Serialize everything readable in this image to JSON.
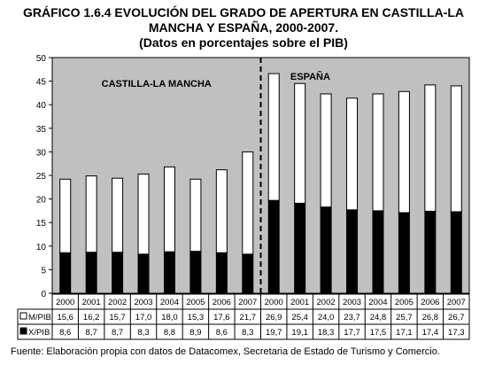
{
  "title_line1": "GRÁFICO 1.6.4 EVOLUCIÓN DEL GRADO DE APERTURA EN CASTILLA-LA",
  "title_line2": "MANCHA Y ESPAÑA, 2000-2007.",
  "title_line3": "(Datos en porcentajes sobre el PIB)",
  "source": "Fuente: Elaboración propia con datos de Datacomex, Secretaria de Estado de Turismo y Comercio.",
  "chart_data": {
    "type": "bar",
    "stacked": true,
    "ylim": [
      0,
      50
    ],
    "yticks": [
      0,
      5,
      10,
      15,
      20,
      25,
      30,
      35,
      40,
      45,
      50
    ],
    "grid": false,
    "regions": [
      "CASTILLA-LA MANCHA",
      "ESPAÑA"
    ],
    "categories": [
      "2000",
      "2001",
      "2002",
      "2003",
      "2004",
      "2005",
      "2006",
      "2007",
      "2000",
      "2001",
      "2002",
      "2003",
      "2004",
      "2005",
      "2006",
      "2007"
    ],
    "series": [
      {
        "name": "X/PIB",
        "color": "#000000",
        "values": [
          8.6,
          8.7,
          8.7,
          8.3,
          8.8,
          8.9,
          8.6,
          8.3,
          19.7,
          19.1,
          18.3,
          17.7,
          17.5,
          17.1,
          17.4,
          17.3
        ]
      },
      {
        "name": "M/PIB",
        "color": "#ffffff",
        "values": [
          15.6,
          16.2,
          15.7,
          17.0,
          18.0,
          15.3,
          17.6,
          21.7,
          26.9,
          25.4,
          24.0,
          23.7,
          24.8,
          25.7,
          26.8,
          26.7
        ]
      }
    ],
    "table_rows": [
      {
        "label": "M/PIB",
        "values": [
          "15,6",
          "16,2",
          "15,7",
          "17,0",
          "18,0",
          "15,3",
          "17,6",
          "21,7",
          "26,9",
          "25,4",
          "24,0",
          "23,7",
          "24,8",
          "25,7",
          "26,8",
          "26,7"
        ]
      },
      {
        "label": "X/PIB",
        "values": [
          "8,6",
          "8,7",
          "8,7",
          "8,3",
          "8,8",
          "8,9",
          "8,6",
          "8,3",
          "19,7",
          "19,1",
          "18,3",
          "17,7",
          "17,5",
          "17,1",
          "17,4",
          "17,3"
        ]
      }
    ],
    "colors": {
      "plot_bg": "#c0c0c0",
      "bar_x": "#000000",
      "bar_m": "#ffffff"
    }
  }
}
